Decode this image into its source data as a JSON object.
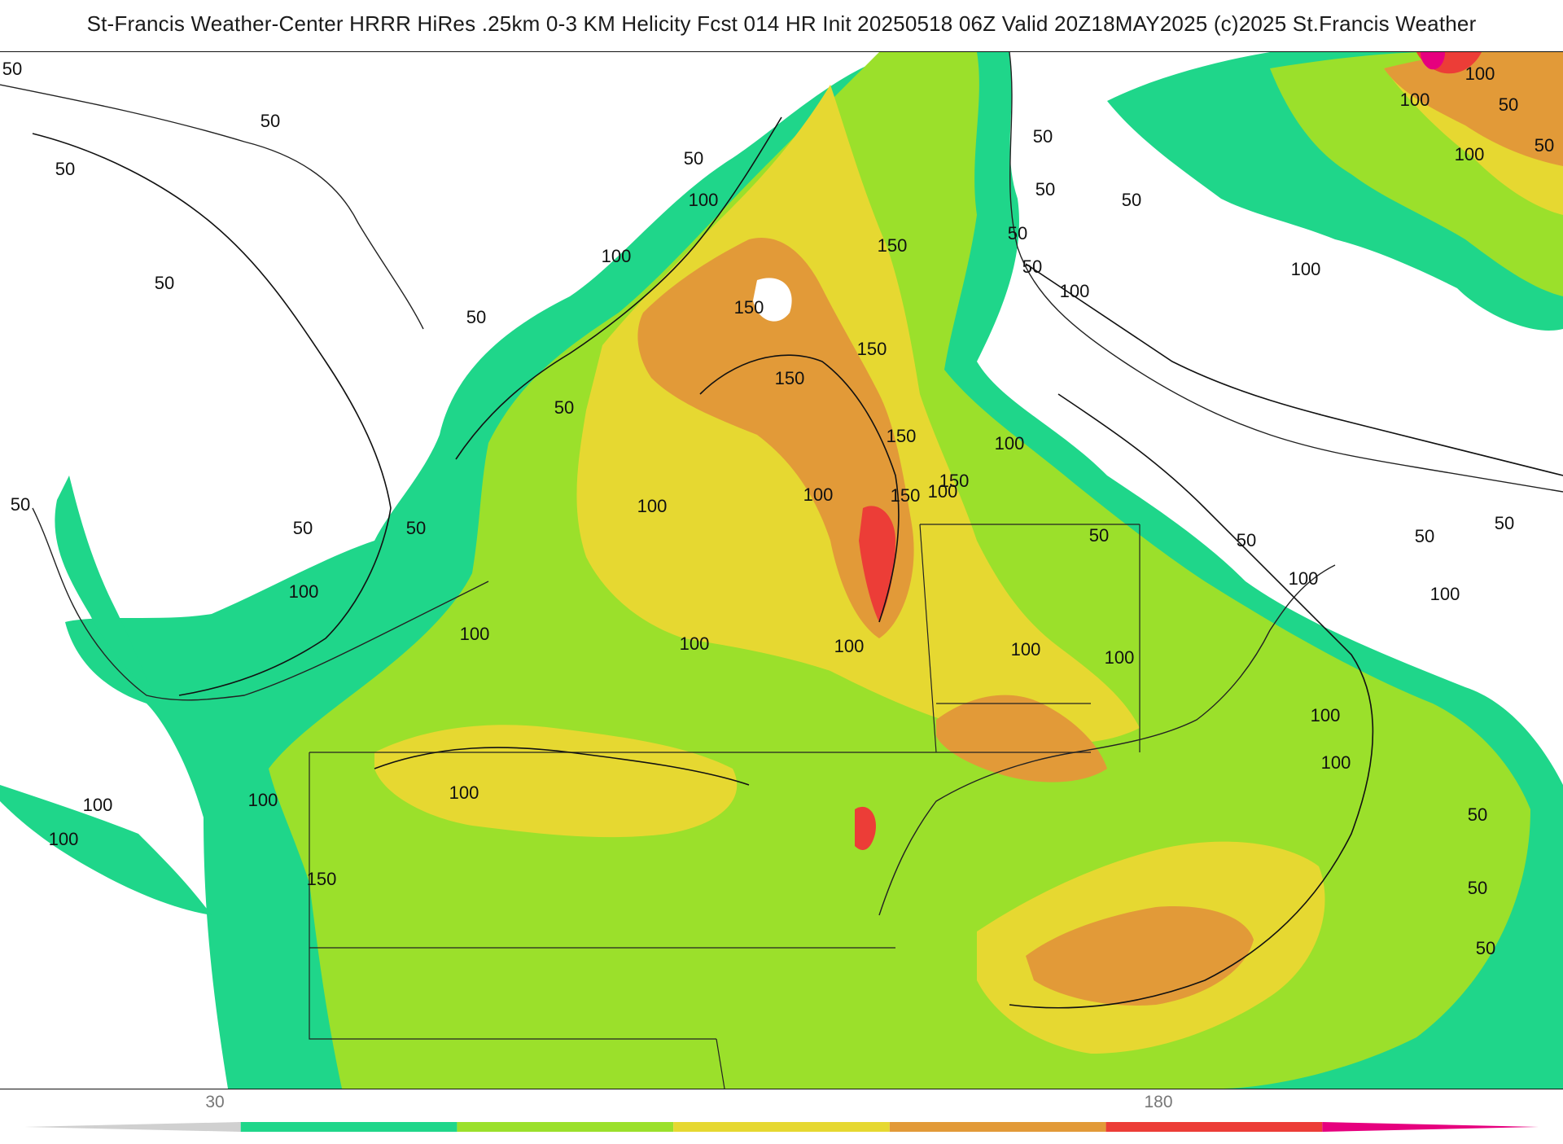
{
  "header": {
    "title": "St-Francis Weather-Center HRRR HiRes .25km 0-3 KM Helicity Fcst 014 HR Init 20250518 06Z  Valid 20Z18MAY2025     (c)2025 St.Francis Weather"
  },
  "map": {
    "field": "0-3 KM Helicity",
    "contour_labels": [
      "50",
      "50",
      "50",
      "50",
      "50",
      "50",
      "50",
      "50",
      "50",
      "50",
      "50",
      "50",
      "50",
      "50",
      "50",
      "50",
      "50",
      "50",
      "50",
      "50",
      "50",
      "50",
      "50",
      "50",
      "100",
      "100",
      "100",
      "100",
      "100",
      "100",
      "100",
      "100",
      "100",
      "100",
      "100",
      "100",
      "100",
      "100",
      "100",
      "100",
      "100",
      "100",
      "100",
      "100",
      "100",
      "100",
      "100",
      "100",
      "100",
      "150",
      "150",
      "150",
      "150",
      "150",
      "150",
      "150",
      "150"
    ]
  },
  "colorbar": {
    "tick_labels": [
      "30",
      "180"
    ],
    "colors": [
      "#d0d0d0",
      "#1fd68a",
      "#9be02b",
      "#e6d831",
      "#e29a38",
      "#ec3d37",
      "#e6007e"
    ]
  },
  "palette": {
    "band_50": "#1fd68a",
    "band_75": "#9be02b",
    "band_100": "#e6d831",
    "band_125": "#e29a38",
    "band_150": "#ec3d37",
    "band_200": "#e6007e"
  }
}
